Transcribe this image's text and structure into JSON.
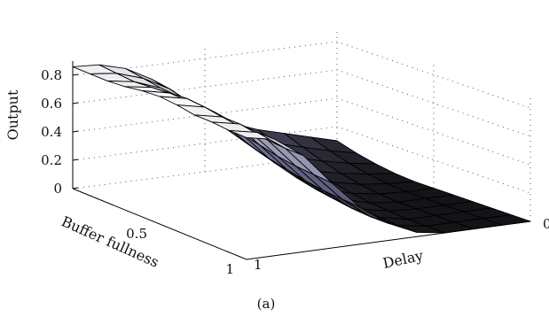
{
  "chart_data": {
    "type": "surface",
    "title": "",
    "caption": "(a)",
    "zlabel": "Output",
    "xlabel": "Delay",
    "ylabel": "Buffer fullness",
    "zlim": [
      0,
      0.9
    ],
    "z_ticks": [
      "0",
      "0.2",
      "0.4",
      "0.6",
      "0.8"
    ],
    "delay_ticks": [
      "1",
      "0"
    ],
    "buffer_ticks": [
      "0.5",
      "1"
    ],
    "grid": true,
    "colormap": "bone",
    "colors": {
      "low": "#141418",
      "mid": "#6e6e92",
      "high": "#ffffff"
    },
    "delay_values": [
      1.0,
      0.9,
      0.8,
      0.7,
      0.6,
      0.5,
      0.4,
      0.3,
      0.2,
      0.1,
      0.0
    ],
    "buffer_values": [
      0.0,
      0.1,
      0.2,
      0.3,
      0.4,
      0.5,
      0.6,
      0.7,
      0.8,
      0.9,
      1.0
    ],
    "output_grid": [
      [
        0.86,
        0.86,
        0.86,
        0.87,
        0.89,
        0.9,
        0.89,
        0.87,
        0.87,
        0.86,
        0.86
      ],
      [
        0.85,
        0.84,
        0.83,
        0.84,
        0.85,
        0.86,
        0.85,
        0.83,
        0.83,
        0.82,
        0.82
      ],
      [
        0.8,
        0.78,
        0.76,
        0.75,
        0.74,
        0.74,
        0.72,
        0.7,
        0.69,
        0.68,
        0.68
      ],
      [
        0.7,
        0.68,
        0.64,
        0.61,
        0.58,
        0.56,
        0.53,
        0.5,
        0.48,
        0.47,
        0.46
      ],
      [
        0.56,
        0.53,
        0.48,
        0.44,
        0.4,
        0.36,
        0.33,
        0.3,
        0.28,
        0.27,
        0.26
      ],
      [
        0.42,
        0.38,
        0.33,
        0.28,
        0.24,
        0.2,
        0.17,
        0.15,
        0.13,
        0.12,
        0.12
      ],
      [
        0.32,
        0.27,
        0.22,
        0.17,
        0.13,
        0.1,
        0.07,
        0.05,
        0.04,
        0.03,
        0.03
      ],
      [
        0.25,
        0.2,
        0.15,
        0.1,
        0.07,
        0.04,
        0.02,
        0.01,
        0.0,
        0.0,
        0.0
      ],
      [
        0.2,
        0.15,
        0.1,
        0.06,
        0.03,
        0.01,
        0.0,
        0.0,
        0.0,
        0.0,
        0.0
      ],
      [
        0.15,
        0.1,
        0.06,
        0.03,
        0.01,
        0.0,
        0.0,
        0.0,
        0.0,
        0.0,
        0.0
      ],
      [
        0.1,
        0.06,
        0.03,
        0.01,
        0.0,
        0.0,
        0.0,
        0.0,
        0.0,
        0.0,
        0.0
      ]
    ]
  }
}
